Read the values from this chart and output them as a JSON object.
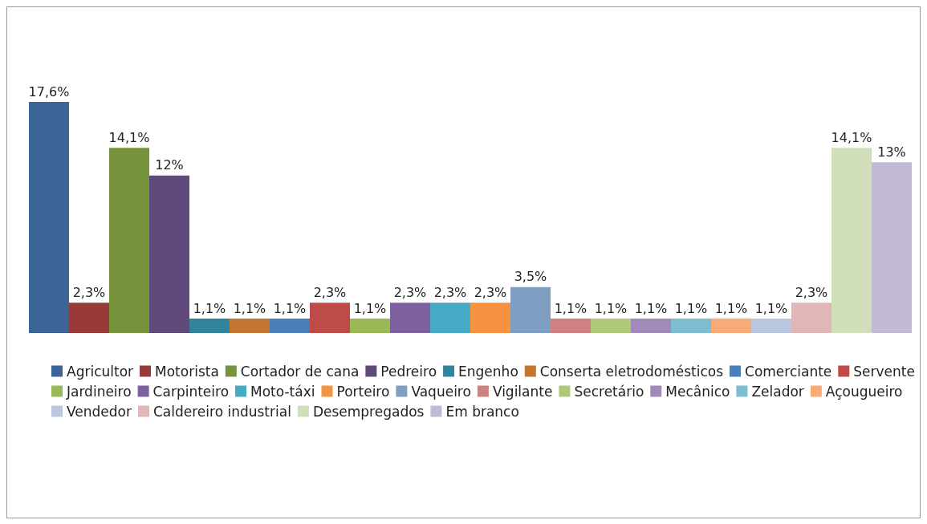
{
  "chart_data": {
    "type": "bar",
    "categories": [
      null
    ],
    "legend": "bottom",
    "series": [
      {
        "name": "Agricultor",
        "color": "#3c6496",
        "values": [
          17.6
        ],
        "value_labels": [
          "17,6%"
        ]
      },
      {
        "name": "Motorista",
        "color": "#983a37",
        "values": [
          2.3
        ],
        "value_labels": [
          "2,3%"
        ]
      },
      {
        "name": "Cortador de cana",
        "color": "#77933c",
        "values": [
          14.1
        ],
        "value_labels": [
          "14,1%"
        ]
      },
      {
        "name": "Pedreiro",
        "color": "#604a7b",
        "values": [
          12
        ],
        "value_labels": [
          "12%"
        ]
      },
      {
        "name": "Engenho",
        "color": "#31849b",
        "values": [
          1.1
        ],
        "value_labels": [
          "1,1%"
        ]
      },
      {
        "name": "Conserta eletrodomésticos",
        "color": "#c47530",
        "values": [
          1.1
        ],
        "value_labels": [
          "1,1%"
        ]
      },
      {
        "name": "Comerciante",
        "color": "#4a7ebb",
        "values": [
          1.1
        ],
        "value_labels": [
          "1,1%"
        ]
      },
      {
        "name": "Servente",
        "color": "#be4b48",
        "values": [
          2.3
        ],
        "value_labels": [
          "2,3%"
        ]
      },
      {
        "name": "Jardineiro",
        "color": "#98b954",
        "values": [
          1.1
        ],
        "value_labels": [
          "1,1%"
        ]
      },
      {
        "name": "Carpinteiro",
        "color": "#7d60a0",
        "values": [
          2.3
        ],
        "value_labels": [
          "2,3%"
        ]
      },
      {
        "name": "Moto-táxi",
        "color": "#46aac5",
        "values": [
          2.3
        ],
        "value_labels": [
          "2,3%"
        ]
      },
      {
        "name": "Porteiro",
        "color": "#f69240",
        "values": [
          2.3
        ],
        "value_labels": [
          "2,3%"
        ]
      },
      {
        "name": "Vaqueiro",
        "color": "#809ec2",
        "values": [
          3.5
        ],
        "value_labels": [
          "3,5%"
        ]
      },
      {
        "name": "Vigilante",
        "color": "#d08080",
        "values": [
          1.1
        ],
        "value_labels": [
          "1,1%"
        ]
      },
      {
        "name": "Secretário",
        "color": "#afc97a",
        "values": [
          1.1
        ],
        "value_labels": [
          "1,1%"
        ]
      },
      {
        "name": "Mecânico",
        "color": "#a18ab9",
        "values": [
          1.1
        ],
        "value_labels": [
          "1,1%"
        ]
      },
      {
        "name": "Zelador",
        "color": "#7dbcd1",
        "values": [
          1.1
        ],
        "value_labels": [
          "1,1%"
        ]
      },
      {
        "name": "Açougueiro",
        "color": "#f7ab77",
        "values": [
          1.1
        ],
        "value_labels": [
          "1,1%"
        ]
      },
      {
        "name": "Vendedor",
        "color": "#b9c7e1",
        "values": [
          1.1
        ],
        "value_labels": [
          "1,1%"
        ]
      },
      {
        "name": "Caldereiro industrial",
        "color": "#e0b7b6",
        "values": [
          2.3
        ],
        "value_labels": [
          "2,3%"
        ]
      },
      {
        "name": "Desempregados",
        "color": "#d0deb9",
        "values": [
          14.1
        ],
        "value_labels": [
          "14,1%"
        ]
      },
      {
        "name": "Em branco",
        "color": "#c3b9d4",
        "values": [
          13
        ],
        "value_labels": [
          "13%"
        ]
      }
    ]
  }
}
